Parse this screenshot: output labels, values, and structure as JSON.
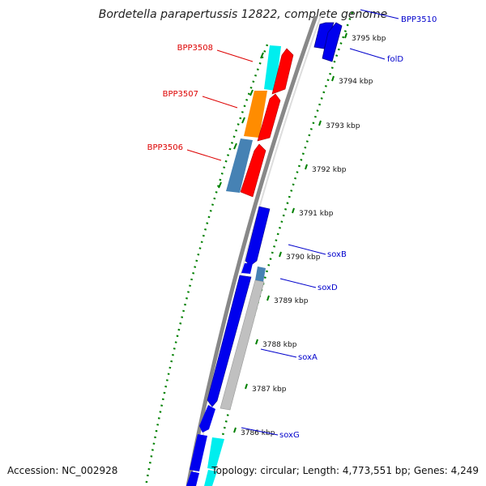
{
  "title": "Bordetella parapertussis 12822, complete genome",
  "footer": {
    "accession": "Accession: NC_002928",
    "stats": "Topology: circular; Length: 4,773,551 bp; Genes: 4,249"
  },
  "colors": {
    "forward": "#0000ee",
    "reverse_red": "#ff0000",
    "cyan": "#00eeee",
    "orange": "#ff8c00",
    "steel": "#4682b4",
    "gray_gene": "#c0c0c0",
    "backbone": "#808080",
    "dots": "#008000",
    "red_label": "#dd0000",
    "blue_label": "#0000cc"
  },
  "ticks": [
    {
      "label": "3795 kbp"
    },
    {
      "label": "3794 kbp"
    },
    {
      "label": "3793 kbp"
    },
    {
      "label": "3792 kbp"
    },
    {
      "label": "3791 kbp"
    },
    {
      "label": "3790 kbp"
    },
    {
      "label": "3789 kbp"
    },
    {
      "label": "3788 kbp"
    },
    {
      "label": "3787 kbp"
    },
    {
      "label": "3786 kbp"
    }
  ],
  "gene_labels": [
    {
      "name": "BPP3510",
      "color": "blue"
    },
    {
      "name": "folD",
      "color": "blue"
    },
    {
      "name": "BPP3508",
      "color": "red"
    },
    {
      "name": "BPP3507",
      "color": "red"
    },
    {
      "name": "BPP3506",
      "color": "red"
    },
    {
      "name": "soxB",
      "color": "blue"
    },
    {
      "name": "soxD",
      "color": "blue"
    },
    {
      "name": "soxA",
      "color": "blue"
    },
    {
      "name": "soxG",
      "color": "blue"
    }
  ]
}
